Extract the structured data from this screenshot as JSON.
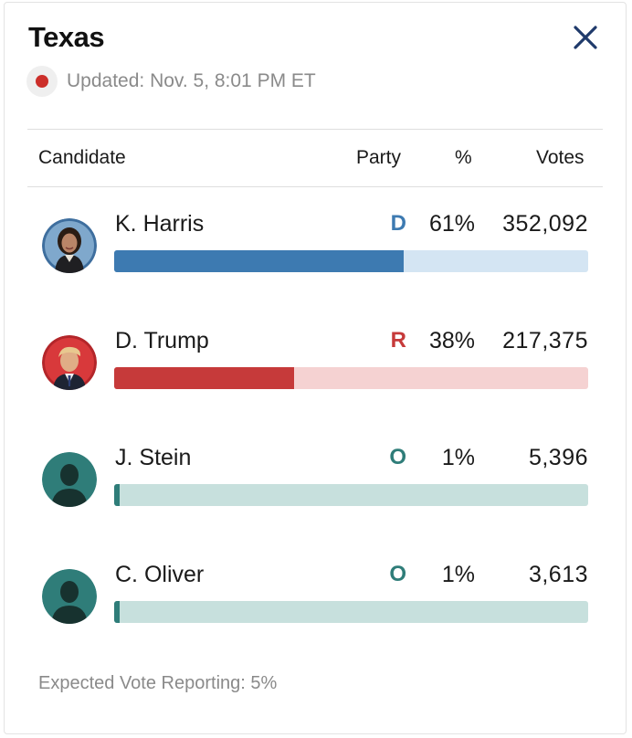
{
  "header": {
    "title": "Texas",
    "updated": "Updated: Nov. 5, 8:01 PM ET",
    "close_icon": "close-icon"
  },
  "table": {
    "columns": [
      "Candidate",
      "Party",
      "%",
      "Votes"
    ]
  },
  "candidates": [
    {
      "name": "K. Harris",
      "party": "D",
      "pct": "61%",
      "votes": "352,092",
      "share": 0.61,
      "party_color": "#3d7ab1",
      "bar_color": "#3d7ab1",
      "track_color": "#d4e5f3",
      "avatar": "harris-portrait"
    },
    {
      "name": "D. Trump",
      "party": "R",
      "pct": "38%",
      "votes": "217,375",
      "share": 0.38,
      "party_color": "#c63a3a",
      "bar_color": "#c63a3a",
      "track_color": "#f5d2d2",
      "avatar": "trump-portrait"
    },
    {
      "name": "J. Stein",
      "party": "O",
      "pct": "1%",
      "votes": "5,396",
      "share": 0.01,
      "party_color": "#2f7d79",
      "bar_color": "#2f7d79",
      "track_color": "#c7e0dd",
      "avatar": "person-silhouette-icon"
    },
    {
      "name": "C. Oliver",
      "party": "O",
      "pct": "1%",
      "votes": "3,613",
      "share": 0.01,
      "party_color": "#2f7d79",
      "bar_color": "#2f7d79",
      "track_color": "#c7e0dd",
      "avatar": "person-silhouette-icon"
    }
  ],
  "footer": {
    "expected_vote": "Expected Vote Reporting: 5%"
  },
  "colors": {
    "live_dot": "#cc2f2a",
    "close_icon": "#1f3a6b"
  }
}
